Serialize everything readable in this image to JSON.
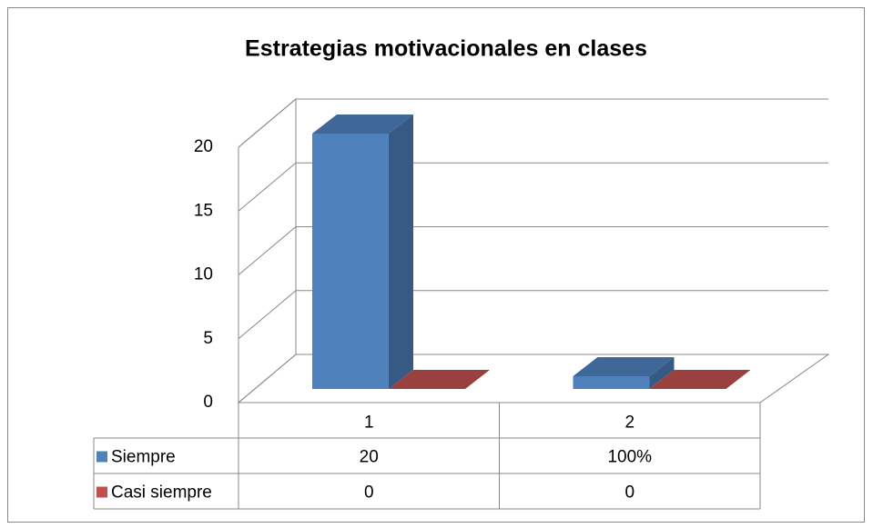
{
  "chart_data": {
    "type": "bar3d",
    "title": "Estrategias motivacionales en clases",
    "categories": [
      "1",
      "2"
    ],
    "series": [
      {
        "name": "Siempre",
        "color": "#4f81bd",
        "values": [
          20,
          1
        ],
        "value_labels": [
          "20",
          "100%"
        ]
      },
      {
        "name": "Casi siempre",
        "color": "#c0504d",
        "values": [
          0,
          0
        ]
      }
    ],
    "ylim": [
      0,
      20
    ],
    "yticks": [
      0,
      5,
      10,
      15,
      20
    ],
    "grid": true,
    "data_table": true
  }
}
